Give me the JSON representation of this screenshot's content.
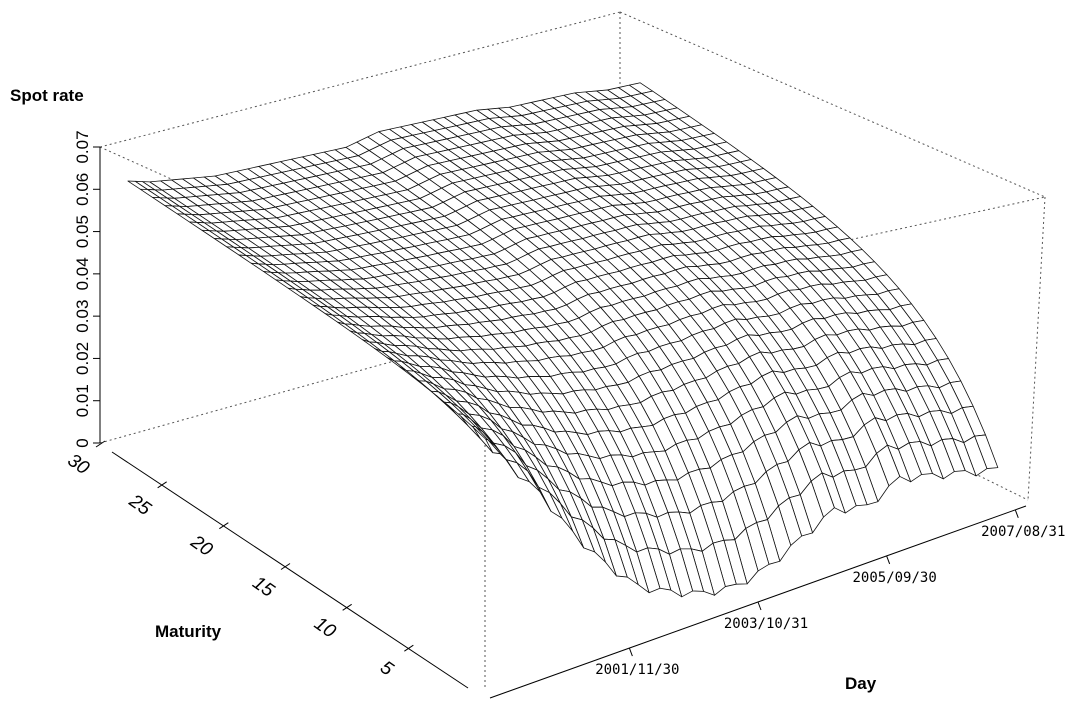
{
  "chart_data": {
    "type": "surface",
    "z_label": "Spot rate",
    "x_label": "Maturity",
    "y_label": "Day",
    "z_ticks": [
      "0",
      "0.01",
      "0.02",
      "0.03",
      "0.04",
      "0.05",
      "0.06",
      "0.07"
    ],
    "z_range": [
      0,
      0.07
    ],
    "maturity_ticks": [
      "5",
      "10",
      "15",
      "20",
      "25",
      "30"
    ],
    "maturity_range": [
      1,
      30
    ],
    "day_ticks": [
      "2001/11/30",
      "2003/10/31",
      "2005/09/30",
      "2007/08/31"
    ],
    "ridges": [
      {
        "day_fraction": 0.02,
        "short_rate": 0.057,
        "long_rate": 0.062
      },
      {
        "day_fraction": 0.06,
        "short_rate": 0.05,
        "long_rate": 0.06
      },
      {
        "day_fraction": 0.12,
        "short_rate": 0.04,
        "long_rate": 0.058
      },
      {
        "day_fraction": 0.18,
        "short_rate": 0.028,
        "long_rate": 0.056
      },
      {
        "day_fraction": 0.24,
        "short_rate": 0.018,
        "long_rate": 0.055
      },
      {
        "day_fraction": 0.3,
        "short_rate": 0.01,
        "long_rate": 0.054
      },
      {
        "day_fraction": 0.36,
        "short_rate": 0.006,
        "long_rate": 0.053
      },
      {
        "day_fraction": 0.42,
        "short_rate": 0.003,
        "long_rate": 0.052
      },
      {
        "day_fraction": 0.48,
        "short_rate": 0.002,
        "long_rate": 0.053
      },
      {
        "day_fraction": 0.54,
        "short_rate": 0.004,
        "long_rate": 0.052
      },
      {
        "day_fraction": 0.6,
        "short_rate": 0.008,
        "long_rate": 0.051
      },
      {
        "day_fraction": 0.66,
        "short_rate": 0.012,
        "long_rate": 0.05
      },
      {
        "day_fraction": 0.72,
        "short_rate": 0.01,
        "long_rate": 0.048
      },
      {
        "day_fraction": 0.78,
        "short_rate": 0.014,
        "long_rate": 0.047
      },
      {
        "day_fraction": 0.84,
        "short_rate": 0.012,
        "long_rate": 0.046
      },
      {
        "day_fraction": 0.9,
        "short_rate": 0.01,
        "long_rate": 0.044
      },
      {
        "day_fraction": 0.96,
        "short_rate": 0.008,
        "long_rate": 0.043
      }
    ]
  }
}
